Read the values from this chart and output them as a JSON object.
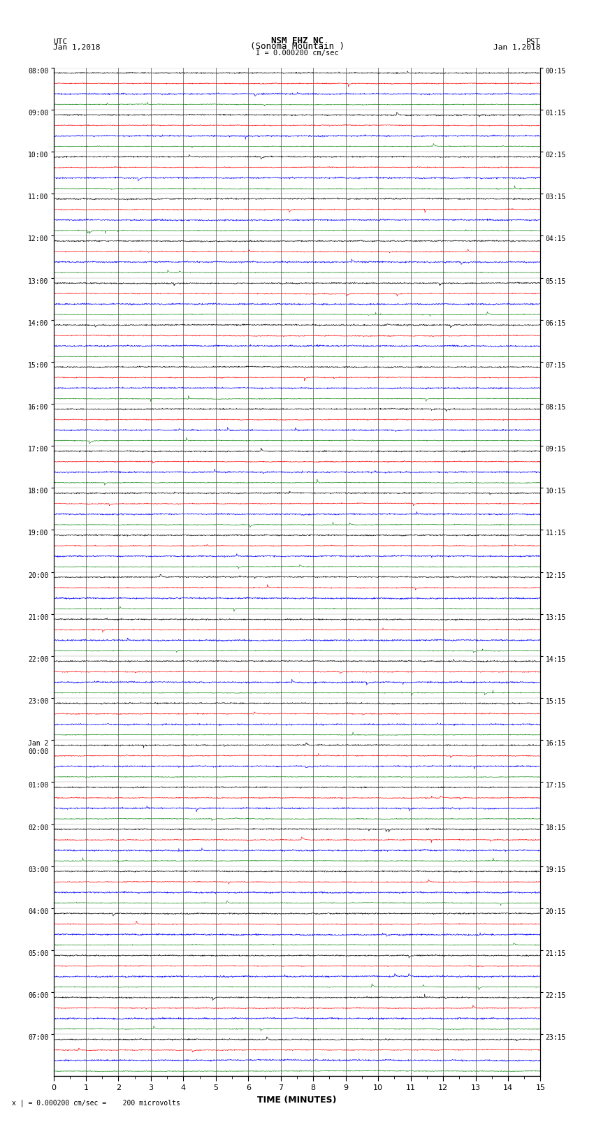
{
  "title_line1": "NSM EHZ NC",
  "title_line2": "(Sonoma Mountain )",
  "scale_text": "I = 0.000200 cm/sec",
  "left_header": "UTC",
  "left_subheader": "Jan 1,2018",
  "right_header": "PST",
  "right_subheader": "Jan 1,2018",
  "bottom_note": "x | = 0.000200 cm/sec =    200 microvolts",
  "xlabel": "TIME (MINUTES)",
  "utc_labels": [
    "08:00",
    "09:00",
    "10:00",
    "11:00",
    "12:00",
    "13:00",
    "14:00",
    "15:00",
    "16:00",
    "17:00",
    "18:00",
    "19:00",
    "20:00",
    "21:00",
    "22:00",
    "23:00",
    "Jan 2\n00:00",
    "01:00",
    "02:00",
    "03:00",
    "04:00",
    "05:00",
    "06:00",
    "07:00"
  ],
  "pst_labels": [
    "00:15",
    "01:15",
    "02:15",
    "03:15",
    "04:15",
    "05:15",
    "06:15",
    "07:15",
    "08:15",
    "09:15",
    "10:15",
    "11:15",
    "12:15",
    "13:15",
    "14:15",
    "15:15",
    "16:15",
    "17:15",
    "18:15",
    "19:15",
    "20:15",
    "21:15",
    "22:15",
    "23:15"
  ],
  "colors": [
    "black",
    "red",
    "blue",
    "green"
  ],
  "num_hour_groups": 24,
  "traces_per_group": 4,
  "time_minutes": 15,
  "samples_per_trace": 1800,
  "fig_width": 8.5,
  "fig_height": 16.13,
  "dpi": 100,
  "bg_color": "white",
  "xmin": 0,
  "xmax": 15,
  "trace_linewidth": 0.4,
  "grid_linewidth": 0.5
}
